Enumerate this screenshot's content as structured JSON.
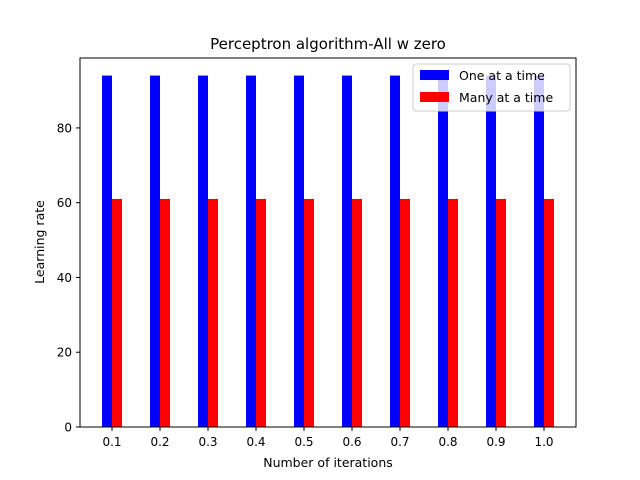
{
  "chart_data": {
    "type": "bar",
    "title": "Perceptron algorithm-All w zero",
    "xlabel": "Number of iterations",
    "ylabel": "Learning rate",
    "categories": [
      "0.1",
      "0.2",
      "0.3",
      "0.4",
      "0.5",
      "0.6",
      "0.7",
      "0.8",
      "0.9",
      "1.0"
    ],
    "series": [
      {
        "name": "One at a time",
        "color": "#0000ff",
        "values": [
          94,
          94,
          94,
          94,
          94,
          94,
          94,
          94,
          94,
          94
        ]
      },
      {
        "name": "Many at a time",
        "color": "#ff0000",
        "values": [
          61,
          61,
          61,
          61,
          61,
          61,
          61,
          61,
          61,
          61
        ]
      }
    ],
    "ylim": [
      0,
      98.7
    ],
    "yticks": [
      0,
      20,
      40,
      60,
      80
    ],
    "legend_position": "top-right",
    "grid": false
  }
}
